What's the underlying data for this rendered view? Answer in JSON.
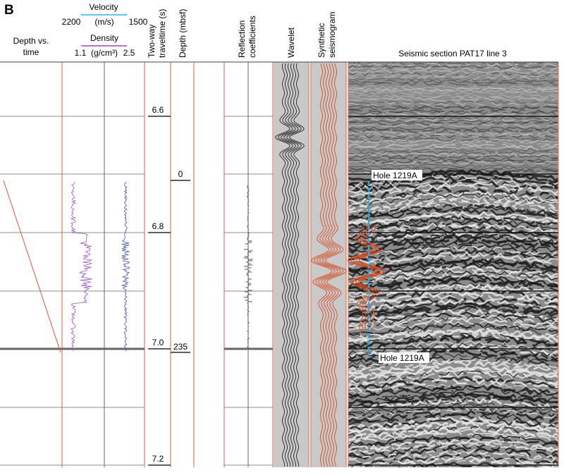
{
  "panel_label": "B",
  "depth_vs_time": [
    "Depth vs.",
    "time"
  ],
  "velocity": {
    "title": "Velocity",
    "left": "2200",
    "unit": "(m/s)",
    "right": "1500"
  },
  "density": {
    "title": "Density",
    "left": "1.1",
    "unit": "(g/cm³)",
    "right": "2.5"
  },
  "traveltime_title": [
    "Two-way",
    "traveltime (s)"
  ],
  "depth_title": "Depth (mbsf)",
  "reflection_title": [
    "Reflection",
    "coefficients"
  ],
  "wavelet_title": "Wavelet",
  "synthetic_title": [
    "Synthetic",
    "seismogram"
  ],
  "seismic_title": "Seismic section PAT17 line 3",
  "time_ticks": [
    "6.6",
    "6.8",
    "7.0",
    "7.2"
  ],
  "depth_ticks": [
    "0",
    "235"
  ],
  "hole_labels": [
    "Hole 1219A",
    "Hole 1219A"
  ]
}
